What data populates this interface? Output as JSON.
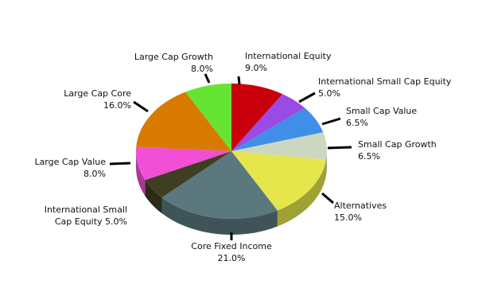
{
  "chart_data": {
    "type": "pie3d",
    "categories": [
      "International Equity",
      "International Small Cap Equity",
      "Small Cap Value",
      "Small Cap Growth",
      "Alternatives",
      "Core Fixed Income",
      "International Small Cap Equity",
      "Large Cap Value",
      "Large Cap Core",
      "Large Cap Growth"
    ],
    "values": [
      9,
      5,
      6.5,
      6.5,
      15,
      21,
      5,
      8,
      16,
      8
    ],
    "value_labels": [
      "9.0%",
      "5.0%",
      "6.5%",
      "6.5%",
      "15.0%",
      "21.0%",
      "5.0%",
      "8.0%",
      "16.0%",
      "8.0%"
    ],
    "colors": [
      "#c8000c",
      "#9a4be6",
      "#3f8fe8",
      "#ccd7c0",
      "#e5e64c",
      "#5a787e",
      "#3f3e22",
      "#f04fd6",
      "#d97a00",
      "#66e433"
    ]
  }
}
